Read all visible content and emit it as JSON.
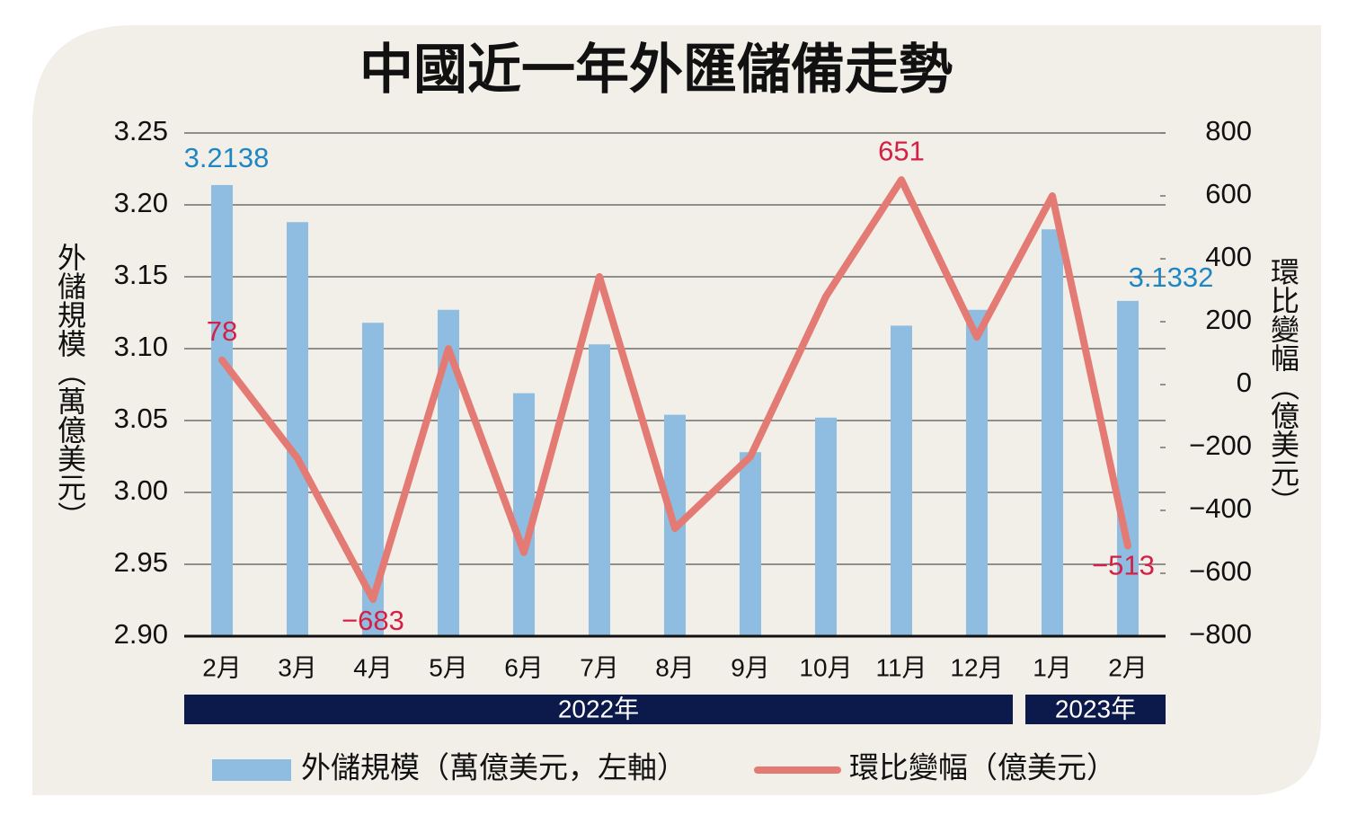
{
  "chart_data": {
    "type": "bar-line",
    "title": "中國近一年外匯儲備走勢",
    "y_label": "外儲規模（萬億美元）",
    "y2_label": "環比變幅（億美元）",
    "categories": [
      "2月",
      "3月",
      "4月",
      "5月",
      "6月",
      "7月",
      "8月",
      "9月",
      "10月",
      "11月",
      "12月",
      "1月",
      "2月"
    ],
    "year_groups": [
      {
        "label": "2022年",
        "count": 11
      },
      {
        "label": "2023年",
        "count": 2
      }
    ],
    "series": [
      {
        "name": "外儲規模（萬億美元，左軸）",
        "type": "bar",
        "color": "#8fbde1",
        "label_color": "#1f86c4",
        "values": [
          3.2138,
          3.188,
          3.118,
          3.127,
          3.069,
          3.103,
          3.054,
          3.028,
          3.052,
          3.116,
          3.127,
          3.183,
          3.1332
        ],
        "value_labels": [
          "3.2138",
          null,
          null,
          null,
          null,
          null,
          null,
          null,
          null,
          null,
          null,
          null,
          "3.1332"
        ]
      },
      {
        "name": "環比變幅（億美元）",
        "type": "line",
        "axis": "y2",
        "color": "#e37b74",
        "label_color": "#d42045",
        "values": [
          78,
          -234,
          -683,
          114,
          -534,
          343,
          -457,
          -229,
          280,
          651,
          151,
          600,
          -513
        ],
        "value_labels": [
          "78",
          null,
          "−683",
          null,
          null,
          null,
          null,
          null,
          null,
          "651",
          null,
          null,
          "−513"
        ]
      }
    ],
    "ylim": [
      2.9,
      3.25
    ],
    "yticks": [
      {
        "value": 2.9,
        "label": "2.90"
      },
      {
        "value": 2.95,
        "label": "2.95"
      },
      {
        "value": 3.0,
        "label": "3.00"
      },
      {
        "value": 3.05,
        "label": "3.05"
      },
      {
        "value": 3.1,
        "label": "3.10"
      },
      {
        "value": 3.15,
        "label": "3.15"
      },
      {
        "value": 3.2,
        "label": "3.20"
      },
      {
        "value": 3.25,
        "label": "3.25"
      }
    ],
    "y2lim": [
      -800,
      800
    ],
    "y2ticks": [
      {
        "value": -800,
        "label": "−800"
      },
      {
        "value": -600,
        "label": "−600"
      },
      {
        "value": -400,
        "label": "−400"
      },
      {
        "value": -200,
        "label": "−200"
      },
      0,
      200,
      400,
      600,
      800
    ],
    "grid": true
  }
}
